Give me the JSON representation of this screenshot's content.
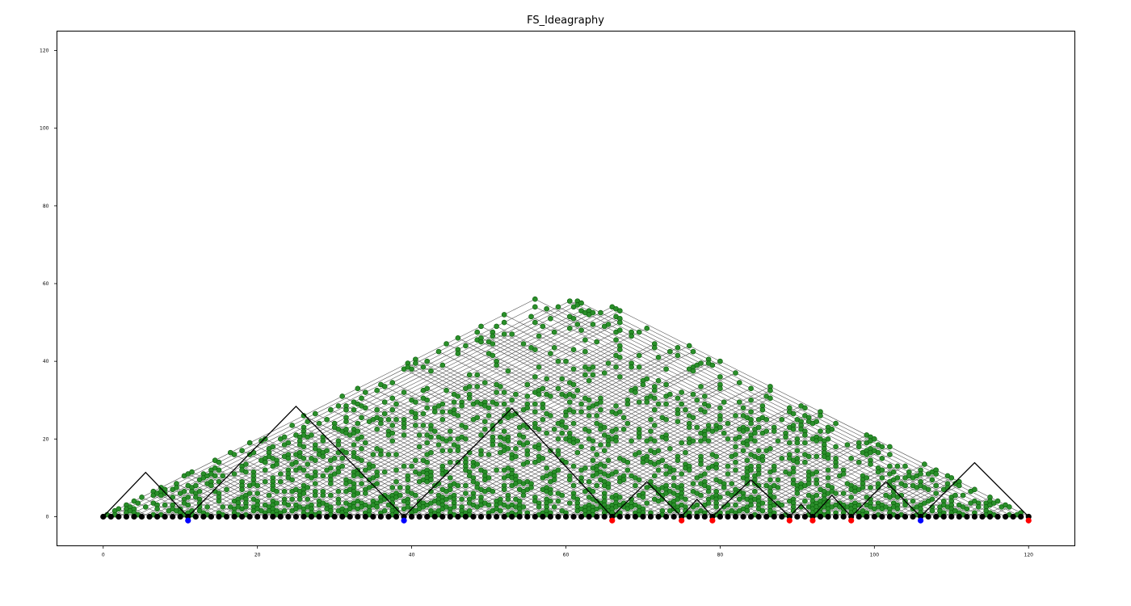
{
  "chart_data": {
    "type": "scatter",
    "title": "FS_Ideagraphy",
    "xlabel": "",
    "ylabel": "",
    "xlim": [
      -6,
      126
    ],
    "ylim": [
      -7.5,
      125
    ],
    "xticks": [
      0,
      20,
      40,
      60,
      80,
      100,
      120
    ],
    "yticks": [
      0,
      20,
      40,
      60,
      80,
      100,
      120
    ],
    "grid": false,
    "n_units": 120,
    "colors": {
      "baseline": "#000000",
      "link": "#555555",
      "arc": "#000000",
      "node_fill": "#2a8f2a",
      "node_edge": "#0a5a0a",
      "forward_marker": "#0000ff",
      "backward_marker": "#ff0000"
    },
    "forward_critical_units": [
      11,
      39,
      106
    ],
    "backward_critical_units": [
      66,
      75,
      79,
      89,
      92,
      97,
      120
    ],
    "critical_arcs": [
      [
        0,
        5.5,
        11.4,
        11
      ],
      [
        11,
        25,
        28.4,
        39
      ],
      [
        39,
        53,
        27.9,
        66
      ],
      [
        66,
        70.5,
        9,
        75
      ],
      [
        75,
        77,
        4.5,
        79
      ],
      [
        79,
        84,
        9.5,
        89
      ],
      [
        89,
        90.5,
        3.2,
        92
      ],
      [
        92,
        94.5,
        5.5,
        97
      ],
      [
        97,
        101.5,
        9,
        106
      ],
      [
        106,
        113,
        13.9,
        120
      ]
    ],
    "link_density": 0.3
  }
}
